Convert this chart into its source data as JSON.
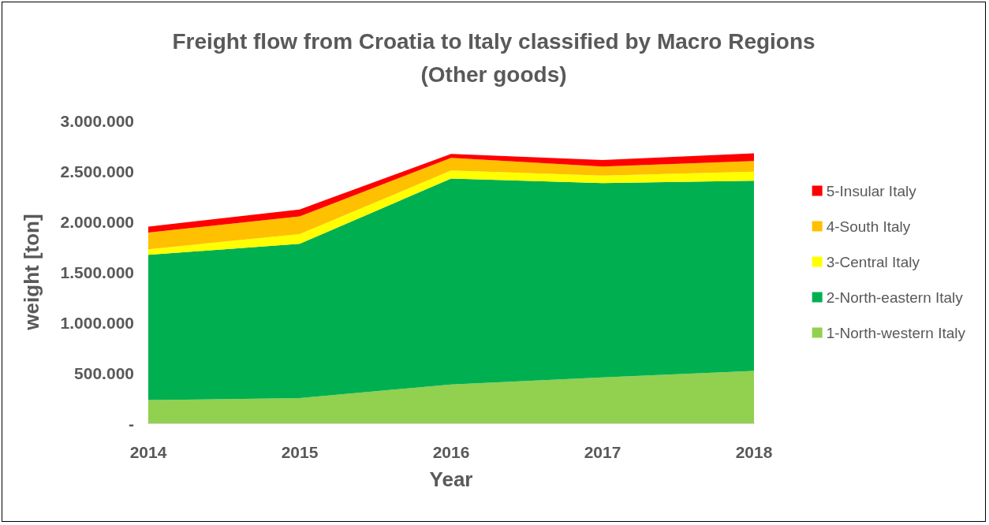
{
  "chart_data": {
    "type": "area",
    "stacked": true,
    "title": "Freight flow from Croatia to Italy classified by Macro Regions",
    "subtitle": "(Other goods)",
    "xlabel": "Year",
    "ylabel": "weight [ton]",
    "categories": [
      "2014",
      "2015",
      "2016",
      "2017",
      "2018"
    ],
    "series": [
      {
        "name": "1-North-western Italy",
        "color": "#92d050",
        "values": [
          230000,
          250000,
          385000,
          455000,
          520000
        ]
      },
      {
        "name": "2-North-eastern Italy",
        "color": "#00b050",
        "values": [
          1440000,
          1530000,
          2040000,
          1925000,
          1885000
        ]
      },
      {
        "name": "3-Central Italy",
        "color": "#ffff00",
        "values": [
          55000,
          95000,
          80000,
          75000,
          90000
        ]
      },
      {
        "name": "4-South Italy",
        "color": "#ffc000",
        "values": [
          165000,
          175000,
          125000,
          90000,
          105000
        ]
      },
      {
        "name": "5-Insular Italy",
        "color": "#ff0000",
        "values": [
          60000,
          70000,
          40000,
          65000,
          75000
        ]
      }
    ],
    "ylim": [
      0,
      3000000
    ],
    "yticks": [
      {
        "value": 0,
        "label": "-"
      },
      {
        "value": 500000,
        "label": "500.000"
      },
      {
        "value": 1000000,
        "label": "1.000.000"
      },
      {
        "value": 1500000,
        "label": "1.500.000"
      },
      {
        "value": 2000000,
        "label": "2.000.000"
      },
      {
        "value": 2500000,
        "label": "2.500.000"
      },
      {
        "value": 3000000,
        "label": "3.000.000"
      }
    ],
    "grid": false,
    "legend": "right",
    "marker": "none"
  }
}
